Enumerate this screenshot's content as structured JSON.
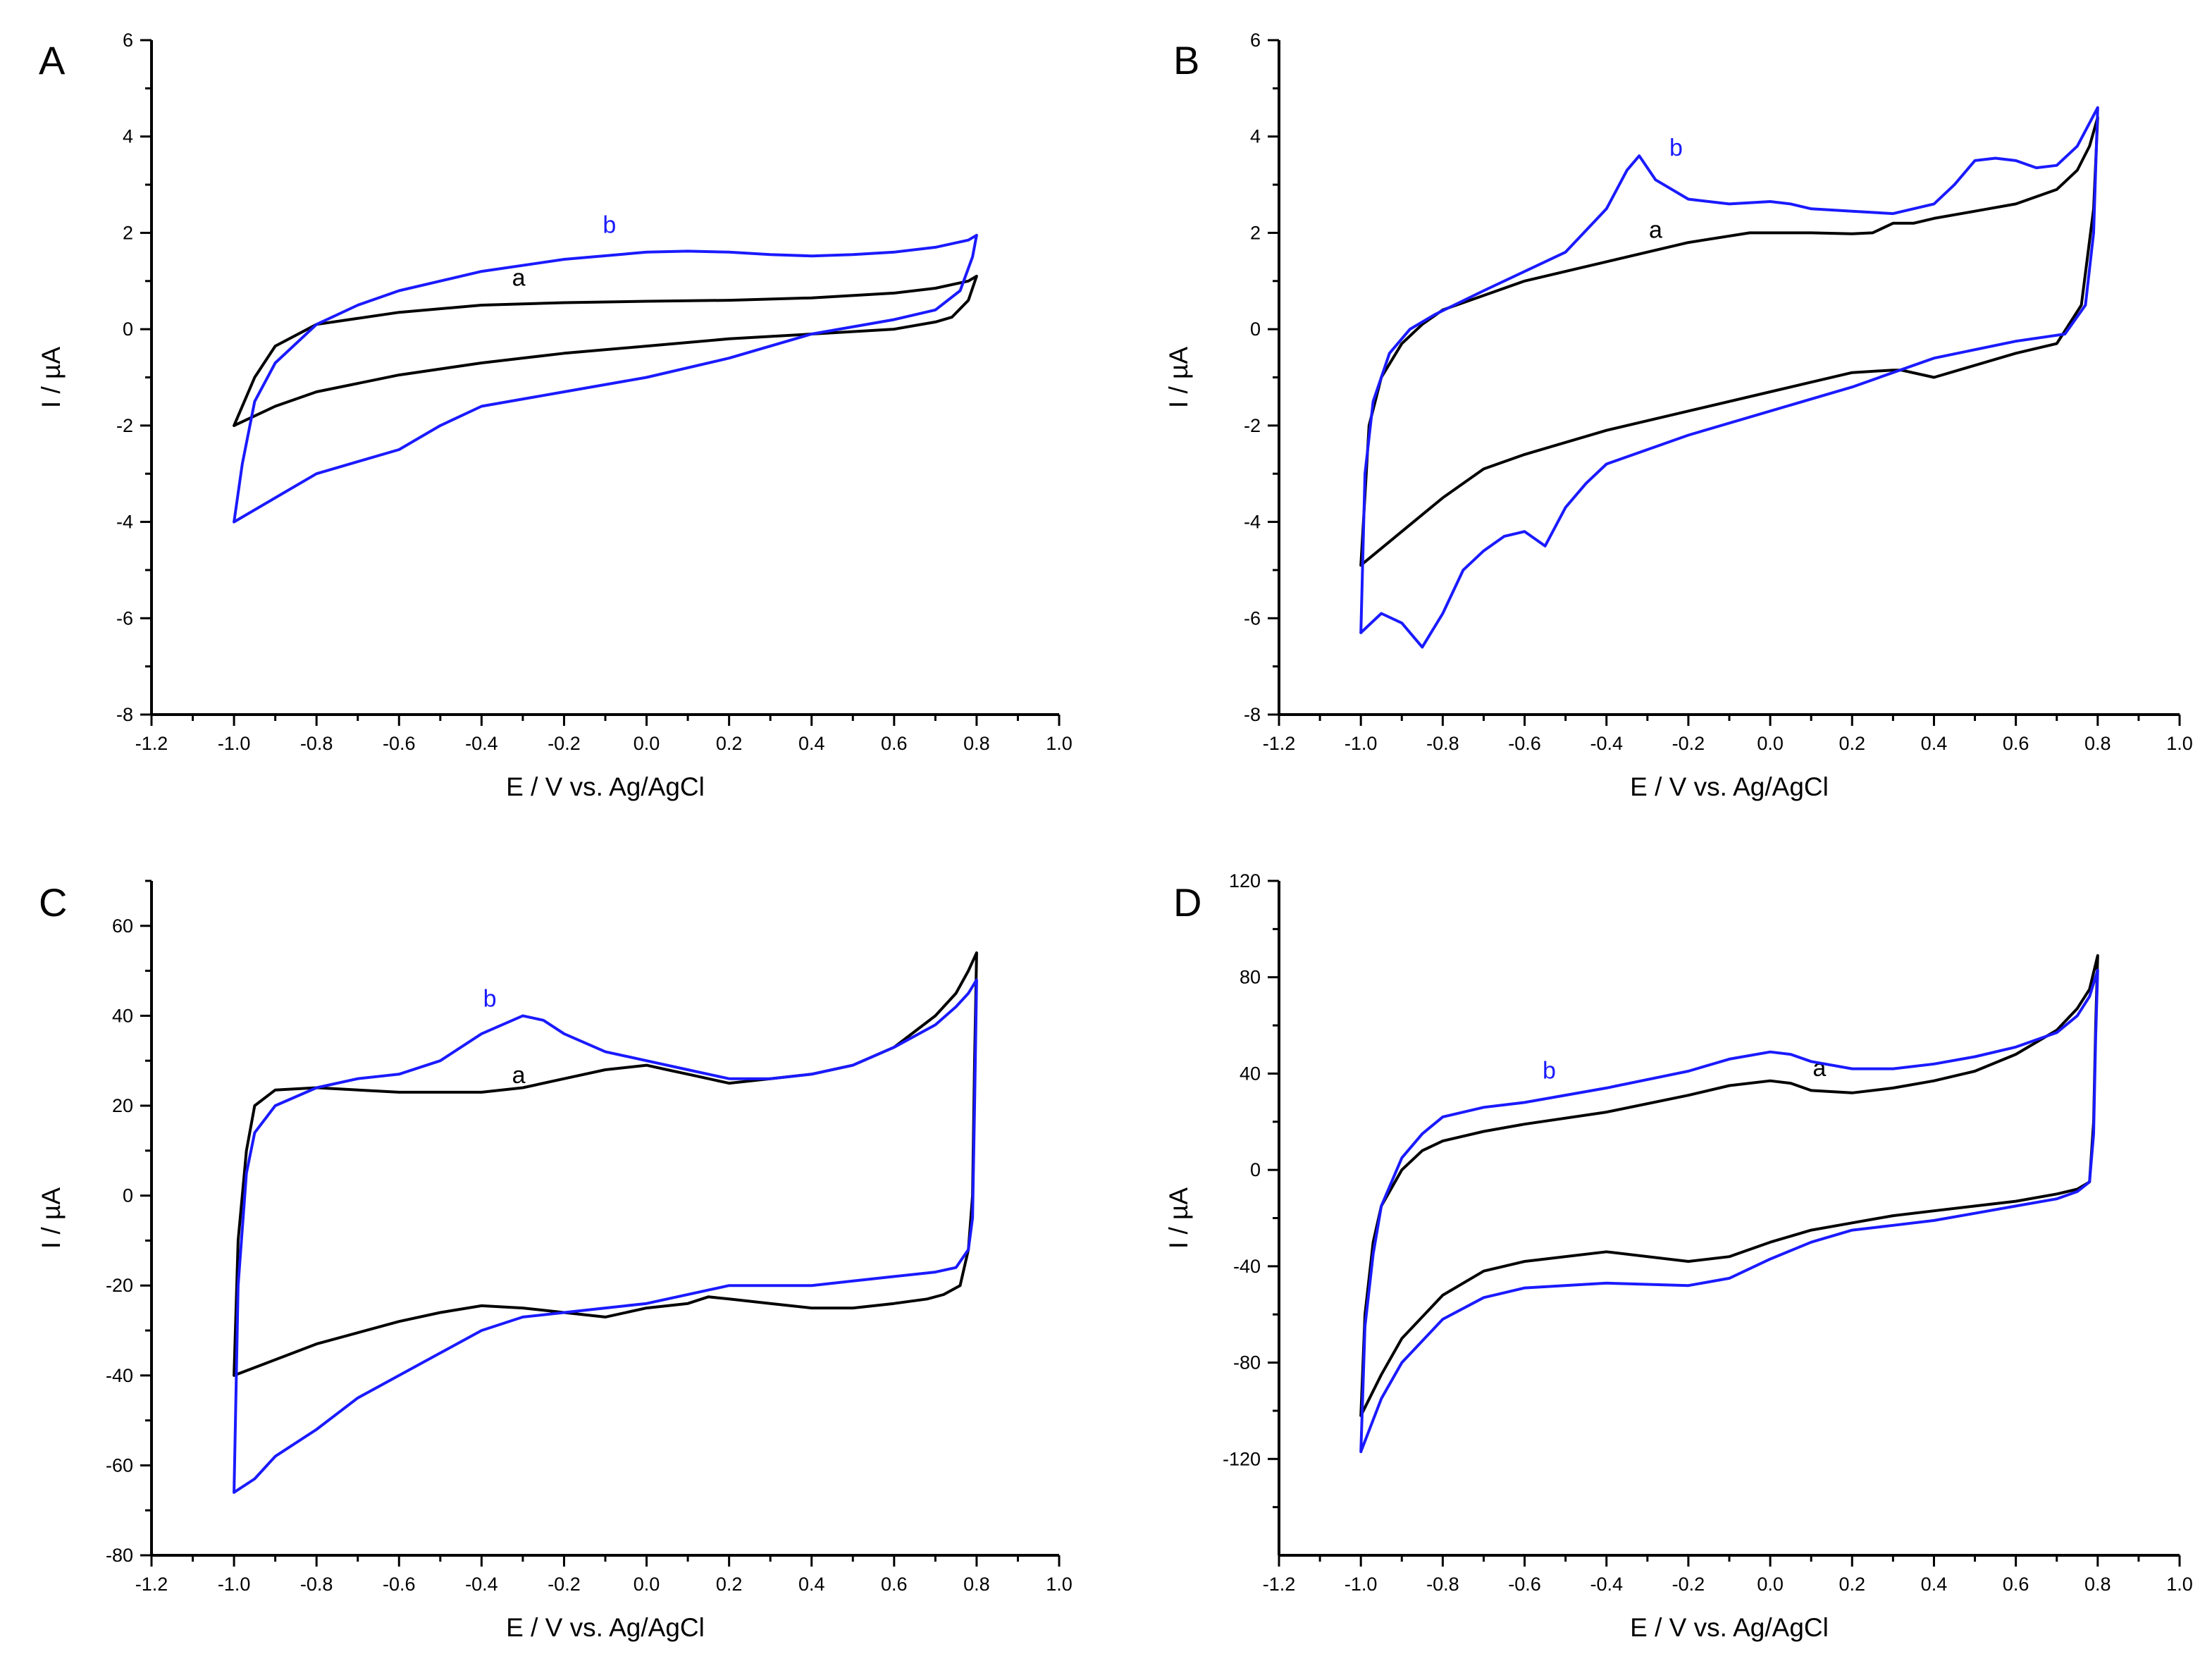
{
  "colors": {
    "a": "#000000",
    "b": "#1a1aff",
    "axis": "#000000"
  },
  "chart_data": [
    {
      "type": "line",
      "panel": "A",
      "xlabel": "E / V vs. Ag/AgCl",
      "ylabel": "I / µA",
      "xlim": [
        -1.2,
        1.0
      ],
      "ylim": [
        -8,
        6
      ],
      "xticks": [
        -1.2,
        -1.0,
        -0.8,
        -0.6,
        -0.4,
        -0.2,
        0.0,
        0.2,
        0.4,
        0.6,
        0.8,
        1.0
      ],
      "xtick_labels": [
        "-1.2",
        "-1.0",
        "-0.8",
        "-0.6",
        "-0.4",
        "-0.2",
        "0.0",
        "0.2",
        "0.4",
        "0.6",
        "0.8",
        "1.0"
      ],
      "yticks": [
        -8,
        -6,
        -4,
        -2,
        0,
        2,
        4,
        6
      ],
      "ytick_labels": [
        "-8",
        "-6",
        "-4",
        "-2",
        "0",
        "2",
        "4",
        "6"
      ],
      "grid": false,
      "series": [
        {
          "name": "a",
          "color": "#000000",
          "label_pos": [
            -0.31,
            0.9
          ],
          "x": [
            -1.0,
            -0.95,
            -0.9,
            -0.8,
            -0.6,
            -0.4,
            -0.2,
            0.0,
            0.2,
            0.4,
            0.6,
            0.7,
            0.78,
            0.8,
            0.78,
            0.74,
            0.7,
            0.6,
            0.4,
            0.2,
            0.0,
            -0.2,
            -0.4,
            -0.6,
            -0.8,
            -0.9,
            -1.0
          ],
          "y": [
            -2.0,
            -1.0,
            -0.35,
            0.1,
            0.35,
            0.5,
            0.55,
            0.58,
            0.6,
            0.65,
            0.75,
            0.85,
            1.0,
            1.1,
            0.6,
            0.25,
            0.15,
            0.0,
            -0.1,
            -0.2,
            -0.35,
            -0.5,
            -0.7,
            -0.95,
            -1.3,
            -1.6,
            -2.0
          ]
        },
        {
          "name": "b",
          "color": "#1a1aff",
          "label_pos": [
            -0.09,
            2.0
          ],
          "x": [
            -1.0,
            -0.98,
            -0.95,
            -0.9,
            -0.8,
            -0.7,
            -0.6,
            -0.4,
            -0.2,
            0.0,
            0.1,
            0.2,
            0.3,
            0.4,
            0.5,
            0.6,
            0.7,
            0.78,
            0.8,
            0.79,
            0.76,
            0.7,
            0.6,
            0.4,
            0.2,
            0.0,
            -0.2,
            -0.4,
            -0.5,
            -0.6,
            -0.7,
            -0.8,
            -0.9,
            -1.0
          ],
          "y": [
            -4.0,
            -2.8,
            -1.5,
            -0.7,
            0.1,
            0.5,
            0.8,
            1.2,
            1.45,
            1.6,
            1.62,
            1.6,
            1.55,
            1.52,
            1.55,
            1.6,
            1.7,
            1.85,
            1.95,
            1.5,
            0.8,
            0.4,
            0.2,
            -0.1,
            -0.6,
            -1.0,
            -1.3,
            -1.6,
            -2.0,
            -2.5,
            -2.75,
            -3.0,
            -3.5,
            -4.0
          ]
        }
      ]
    },
    {
      "type": "line",
      "panel": "B",
      "xlabel": "E / V vs. Ag/AgCl",
      "ylabel": "I / µA",
      "xlim": [
        -1.2,
        1.0
      ],
      "ylim": [
        -8,
        6
      ],
      "xticks": [
        -1.2,
        -1.0,
        -0.8,
        -0.6,
        -0.4,
        -0.2,
        0.0,
        0.2,
        0.4,
        0.6,
        0.8,
        1.0
      ],
      "xtick_labels": [
        "-1.2",
        "-1.0",
        "-0.8",
        "-0.6",
        "-0.4",
        "-0.2",
        "0.0",
        "0.2",
        "0.4",
        "0.6",
        "0.8",
        "1.0"
      ],
      "yticks": [
        -8,
        -6,
        -4,
        -2,
        0,
        2,
        4,
        6
      ],
      "ytick_labels": [
        "-8",
        "-6",
        "-4",
        "-2",
        "0",
        "2",
        "4",
        "6"
      ],
      "grid": false,
      "series": [
        {
          "name": "a",
          "color": "#000000",
          "label_pos": [
            -0.28,
            1.9
          ],
          "x": [
            -1.0,
            -0.98,
            -0.95,
            -0.9,
            -0.85,
            -0.8,
            -0.7,
            -0.6,
            -0.4,
            -0.2,
            -0.05,
            0.0,
            0.1,
            0.2,
            0.25,
            0.3,
            0.35,
            0.4,
            0.5,
            0.6,
            0.7,
            0.75,
            0.78,
            0.8,
            0.79,
            0.76,
            0.7,
            0.6,
            0.4,
            0.32,
            0.3,
            0.2,
            0.1,
            0.0,
            -0.2,
            -0.4,
            -0.6,
            -0.7,
            -0.8,
            -0.9,
            -1.0
          ],
          "y": [
            -4.9,
            -2.0,
            -1.0,
            -0.3,
            0.1,
            0.4,
            0.7,
            1.0,
            1.4,
            1.8,
            2.0,
            2.0,
            2.0,
            1.98,
            2.0,
            2.2,
            2.2,
            2.3,
            2.45,
            2.6,
            2.9,
            3.3,
            3.8,
            4.4,
            2.5,
            0.5,
            -0.3,
            -0.5,
            -1.0,
            -0.85,
            -0.85,
            -0.9,
            -1.1,
            -1.3,
            -1.7,
            -2.1,
            -2.6,
            -2.9,
            -3.5,
            -4.2,
            -4.9
          ]
        },
        {
          "name": "b",
          "color": "#1a1aff",
          "label_pos": [
            -0.23,
            3.6
          ],
          "x": [
            -1.0,
            -0.99,
            -0.97,
            -0.93,
            -0.88,
            -0.82,
            -0.7,
            -0.5,
            -0.4,
            -0.35,
            -0.32,
            -0.28,
            -0.2,
            -0.1,
            0.0,
            0.05,
            0.1,
            0.2,
            0.3,
            0.4,
            0.45,
            0.5,
            0.55,
            0.6,
            0.65,
            0.7,
            0.75,
            0.8,
            0.79,
            0.77,
            0.72,
            0.6,
            0.4,
            0.2,
            0.0,
            -0.2,
            -0.4,
            -0.45,
            -0.5,
            -0.55,
            -0.6,
            -0.65,
            -0.7,
            -0.75,
            -0.8,
            -0.85,
            -0.9,
            -0.95,
            -1.0
          ],
          "y": [
            -6.3,
            -3.0,
            -1.5,
            -0.5,
            0.0,
            0.3,
            0.8,
            1.6,
            2.5,
            3.3,
            3.6,
            3.1,
            2.7,
            2.6,
            2.65,
            2.6,
            2.5,
            2.45,
            2.4,
            2.6,
            3.0,
            3.5,
            3.55,
            3.5,
            3.35,
            3.4,
            3.8,
            4.6,
            2.0,
            0.5,
            -0.1,
            -0.25,
            -0.6,
            -1.2,
            -1.7,
            -2.2,
            -2.8,
            -3.2,
            -3.7,
            -4.5,
            -4.2,
            -4.3,
            -4.6,
            -5.0,
            -5.9,
            -6.6,
            -6.1,
            -5.9,
            -6.3
          ]
        }
      ]
    },
    {
      "type": "line",
      "panel": "C",
      "xlabel": "E / V vs. Ag/AgCl",
      "ylabel": "I / µA",
      "xlim": [
        -1.2,
        1.0
      ],
      "ylim": [
        -80,
        70
      ],
      "xticks": [
        -1.2,
        -1.0,
        -0.8,
        -0.6,
        -0.4,
        -0.2,
        0.0,
        0.2,
        0.4,
        0.6,
        0.8,
        1.0
      ],
      "xtick_labels": [
        "-1.2",
        "-1.0",
        "-0.8",
        "-0.6",
        "-0.4",
        "-0.2",
        "0.0",
        "0.2",
        "0.4",
        "0.6",
        "0.8",
        "1.0"
      ],
      "yticks": [
        -80,
        -60,
        -40,
        -20,
        0,
        20,
        40,
        60
      ],
      "ytick_labels": [
        "-80",
        "-60",
        "-40",
        "-20",
        "0",
        "20",
        "40",
        "60"
      ],
      "grid": false,
      "series": [
        {
          "name": "a",
          "color": "#000000",
          "label_pos": [
            -0.31,
            25.0
          ],
          "x": [
            -1.0,
            -0.99,
            -0.97,
            -0.95,
            -0.9,
            -0.8,
            -0.6,
            -0.4,
            -0.3,
            -0.2,
            -0.1,
            0.0,
            0.05,
            0.1,
            0.2,
            0.3,
            0.4,
            0.5,
            0.6,
            0.7,
            0.75,
            0.78,
            0.8,
            0.795,
            0.79,
            0.78,
            0.76,
            0.72,
            0.68,
            0.6,
            0.5,
            0.4,
            0.3,
            0.2,
            0.15,
            0.1,
            0.0,
            -0.1,
            -0.2,
            -0.3,
            -0.4,
            -0.5,
            -0.6,
            -0.8,
            -1.0
          ],
          "y": [
            -40.0,
            -10.0,
            10.0,
            20.0,
            23.5,
            24.0,
            23.0,
            23.0,
            24.0,
            26.0,
            28.0,
            29.0,
            28.0,
            27.0,
            25.0,
            26.0,
            27.0,
            29.0,
            33.0,
            40.0,
            45.0,
            50.0,
            54.0,
            30.0,
            0.0,
            -12.0,
            -20.0,
            -22.0,
            -23.0,
            -24.0,
            -25.0,
            -25.0,
            -24.0,
            -23.0,
            -22.5,
            -24.0,
            -25.0,
            -27.0,
            -26.0,
            -25.0,
            -24.5,
            -26.0,
            -28.0,
            -33.0,
            -40.0
          ]
        },
        {
          "name": "b",
          "color": "#1a1aff",
          "label_pos": [
            -0.38,
            42.0
          ],
          "x": [
            -1.0,
            -0.99,
            -0.97,
            -0.95,
            -0.9,
            -0.8,
            -0.7,
            -0.6,
            -0.5,
            -0.4,
            -0.3,
            -0.25,
            -0.2,
            -0.1,
            0.0,
            0.1,
            0.2,
            0.3,
            0.4,
            0.5,
            0.6,
            0.7,
            0.75,
            0.78,
            0.8,
            0.795,
            0.79,
            0.78,
            0.75,
            0.7,
            0.6,
            0.5,
            0.4,
            0.3,
            0.2,
            0.15,
            0.0,
            -0.1,
            -0.2,
            -0.3,
            -0.4,
            -0.5,
            -0.6,
            -0.7,
            -0.8,
            -0.9,
            -0.95,
            -1.0
          ],
          "y": [
            -66.0,
            -20.0,
            5.0,
            14.0,
            20.0,
            24.0,
            26.0,
            27.0,
            30.0,
            36.0,
            40.0,
            39.0,
            36.0,
            32.0,
            30.0,
            28.0,
            26.0,
            26.0,
            27.0,
            29.0,
            33.0,
            38.0,
            42.0,
            45.0,
            48.0,
            20.0,
            -5.0,
            -12.0,
            -16.0,
            -17.0,
            -18.0,
            -19.0,
            -20.0,
            -20.0,
            -20.0,
            -21.0,
            -24.0,
            -25.0,
            -26.0,
            -27.0,
            -30.0,
            -35.0,
            -40.0,
            -45.0,
            -52.0,
            -58.0,
            -63.0,
            -66.0
          ]
        }
      ]
    },
    {
      "type": "line",
      "panel": "D",
      "xlabel": "E / V vs. Ag/AgCl",
      "ylabel": "I / µA",
      "xlim": [
        -1.2,
        1.0
      ],
      "ylim": [
        -160,
        120
      ],
      "xticks": [
        -1.2,
        -1.0,
        -0.8,
        -0.6,
        -0.4,
        -0.2,
        0.0,
        0.2,
        0.4,
        0.6,
        0.8,
        1.0
      ],
      "xtick_labels": [
        "-1.2",
        "-1.0",
        "-0.8",
        "-0.6",
        "-0.4",
        "-0.2",
        "0.0",
        "0.2",
        "0.4",
        "0.6",
        "0.8",
        "1.0"
      ],
      "yticks": [
        -120,
        -80,
        -40,
        0,
        40,
        80,
        120
      ],
      "ytick_labels": [
        "-120",
        "-80",
        "-40",
        "0",
        "40",
        "80",
        "120"
      ],
      "grid": false,
      "series": [
        {
          "name": "a",
          "color": "#000000",
          "label_pos": [
            0.12,
            39.0
          ],
          "x": [
            -1.0,
            -0.99,
            -0.97,
            -0.95,
            -0.9,
            -0.85,
            -0.8,
            -0.7,
            -0.6,
            -0.4,
            -0.2,
            -0.1,
            0.0,
            0.05,
            0.1,
            0.2,
            0.3,
            0.4,
            0.5,
            0.6,
            0.7,
            0.75,
            0.78,
            0.8,
            0.795,
            0.79,
            0.78,
            0.75,
            0.7,
            0.6,
            0.5,
            0.4,
            0.3,
            0.2,
            0.1,
            0.0,
            -0.1,
            -0.2,
            -0.4,
            -0.6,
            -0.7,
            -0.8,
            -0.9,
            -0.95,
            -1.0
          ],
          "y": [
            -102.0,
            -60.0,
            -30.0,
            -15.0,
            0.0,
            8.0,
            12.0,
            16.0,
            19.0,
            24.0,
            31.0,
            35.0,
            37.0,
            36.0,
            33.0,
            32.0,
            34.0,
            37.0,
            41.0,
            48.0,
            58.0,
            67.0,
            75.0,
            89.0,
            60.0,
            20.0,
            -5.0,
            -8.0,
            -10.0,
            -13.0,
            -15.0,
            -17.0,
            -19.0,
            -22.0,
            -25.0,
            -30.0,
            -36.0,
            -38.0,
            -34.0,
            -38.0,
            -42.0,
            -52.0,
            -70.0,
            -85.0,
            -102.0
          ]
        },
        {
          "name": "b",
          "color": "#1a1aff",
          "label_pos": [
            -0.54,
            38.0
          ],
          "x": [
            -1.0,
            -0.99,
            -0.97,
            -0.95,
            -0.9,
            -0.85,
            -0.8,
            -0.7,
            -0.6,
            -0.4,
            -0.2,
            -0.1,
            0.0,
            0.05,
            0.1,
            0.2,
            0.3,
            0.4,
            0.5,
            0.6,
            0.7,
            0.75,
            0.78,
            0.8,
            0.795,
            0.79,
            0.78,
            0.75,
            0.7,
            0.6,
            0.5,
            0.4,
            0.3,
            0.2,
            0.1,
            0.0,
            -0.1,
            -0.2,
            -0.4,
            -0.6,
            -0.7,
            -0.8,
            -0.9,
            -0.95,
            -1.0
          ],
          "y": [
            -117.0,
            -65.0,
            -35.0,
            -15.0,
            5.0,
            15.0,
            22.0,
            26.0,
            28.0,
            34.0,
            41.0,
            46.0,
            49.0,
            48.0,
            45.0,
            42.0,
            42.0,
            44.0,
            47.0,
            51.0,
            57.0,
            64.0,
            72.0,
            83.0,
            55.0,
            15.0,
            -5.0,
            -9.0,
            -12.0,
            -15.0,
            -18.0,
            -21.0,
            -23.0,
            -25.0,
            -30.0,
            -37.0,
            -45.0,
            -48.0,
            -47.0,
            -49.0,
            -53.0,
            -62.0,
            -80.0,
            -95.0,
            -117.0
          ]
        }
      ]
    }
  ]
}
